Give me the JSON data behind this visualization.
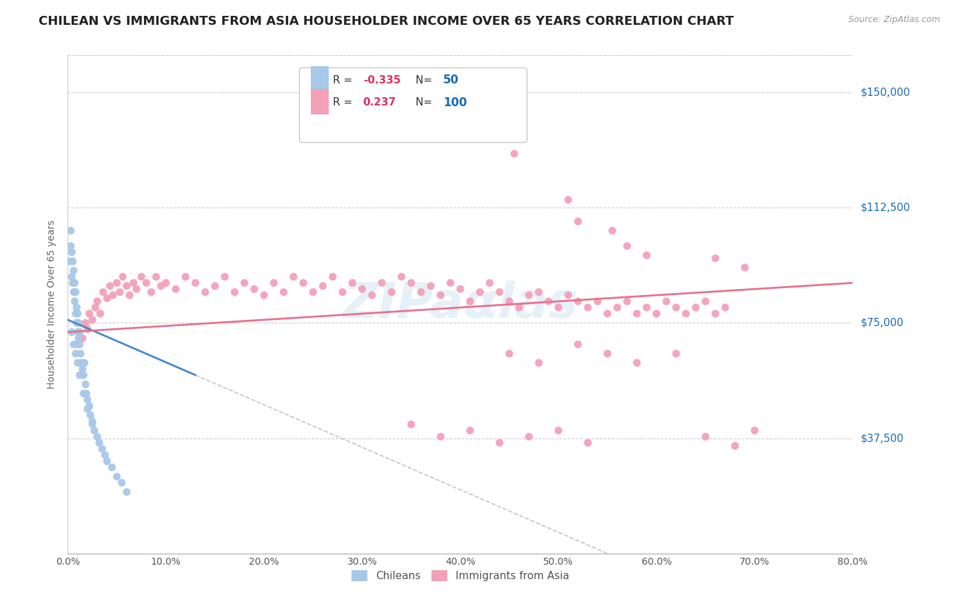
{
  "title": "CHILEAN VS IMMIGRANTS FROM ASIA HOUSEHOLDER INCOME OVER 65 YEARS CORRELATION CHART",
  "source": "Source: ZipAtlas.com",
  "ylabel": "Householder Income Over 65 years",
  "xlabel_ticks": [
    "0.0%",
    "10.0%",
    "20.0%",
    "30.0%",
    "40.0%",
    "50.0%",
    "60.0%",
    "70.0%",
    "80.0%"
  ],
  "ytick_labels": [
    "$37,500",
    "$75,000",
    "$112,500",
    "$150,000"
  ],
  "ytick_values": [
    37500,
    75000,
    112500,
    150000
  ],
  "xlim": [
    0.0,
    0.8
  ],
  "ylim": [
    0,
    162000
  ],
  "chilean_R": "-0.335",
  "chilean_N": "50",
  "asia_R": "0.237",
  "asia_N": "100",
  "chilean_color": "#a8c8e8",
  "asia_color": "#f4a0b8",
  "chilean_line_color": "#4488cc",
  "asia_line_color": "#e87090",
  "legend_text_color": "#1a6bb5",
  "background_color": "#ffffff",
  "title_fontsize": 13,
  "axis_label_fontsize": 10,
  "chilean_x": [
    0.002,
    0.003,
    0.003,
    0.004,
    0.004,
    0.005,
    0.005,
    0.006,
    0.006,
    0.007,
    0.007,
    0.008,
    0.008,
    0.009,
    0.009,
    0.01,
    0.01,
    0.011,
    0.011,
    0.012,
    0.012,
    0.013,
    0.014,
    0.015,
    0.016,
    0.017,
    0.018,
    0.019,
    0.02,
    0.022,
    0.023,
    0.025,
    0.027,
    0.03,
    0.032,
    0.035,
    0.038,
    0.04,
    0.045,
    0.05,
    0.055,
    0.06,
    0.004,
    0.006,
    0.008,
    0.01,
    0.012,
    0.016,
    0.02,
    0.025
  ],
  "chilean_y": [
    95000,
    100000,
    105000,
    90000,
    98000,
    88000,
    95000,
    85000,
    92000,
    82000,
    88000,
    78000,
    85000,
    75000,
    80000,
    72000,
    78000,
    70000,
    75000,
    68000,
    72000,
    65000,
    62000,
    60000,
    58000,
    62000,
    55000,
    52000,
    50000,
    48000,
    45000,
    42000,
    40000,
    38000,
    36000,
    34000,
    32000,
    30000,
    28000,
    25000,
    23000,
    20000,
    72000,
    68000,
    65000,
    62000,
    58000,
    52000,
    47000,
    43000
  ],
  "asia_x": [
    0.01,
    0.012,
    0.015,
    0.018,
    0.02,
    0.022,
    0.025,
    0.028,
    0.03,
    0.033,
    0.036,
    0.04,
    0.043,
    0.046,
    0.05,
    0.053,
    0.056,
    0.06,
    0.063,
    0.067,
    0.07,
    0.075,
    0.08,
    0.085,
    0.09,
    0.095,
    0.1,
    0.11,
    0.12,
    0.13,
    0.14,
    0.15,
    0.16,
    0.17,
    0.18,
    0.19,
    0.2,
    0.21,
    0.22,
    0.23,
    0.24,
    0.25,
    0.26,
    0.27,
    0.28,
    0.29,
    0.3,
    0.31,
    0.32,
    0.33,
    0.34,
    0.35,
    0.36,
    0.37,
    0.38,
    0.39,
    0.4,
    0.41,
    0.42,
    0.43,
    0.44,
    0.45,
    0.46,
    0.47,
    0.48,
    0.49,
    0.5,
    0.51,
    0.52,
    0.53,
    0.54,
    0.55,
    0.56,
    0.57,
    0.58,
    0.59,
    0.6,
    0.61,
    0.62,
    0.63,
    0.64,
    0.65,
    0.66,
    0.67,
    0.45,
    0.48,
    0.52,
    0.55,
    0.58,
    0.62,
    0.35,
    0.38,
    0.41,
    0.44,
    0.47,
    0.5,
    0.53,
    0.65,
    0.68,
    0.7
  ],
  "asia_y": [
    68000,
    72000,
    70000,
    75000,
    73000,
    78000,
    76000,
    80000,
    82000,
    78000,
    85000,
    83000,
    87000,
    84000,
    88000,
    85000,
    90000,
    87000,
    84000,
    88000,
    86000,
    90000,
    88000,
    85000,
    90000,
    87000,
    88000,
    86000,
    90000,
    88000,
    85000,
    87000,
    90000,
    85000,
    88000,
    86000,
    84000,
    88000,
    85000,
    90000,
    88000,
    85000,
    87000,
    90000,
    85000,
    88000,
    86000,
    84000,
    88000,
    85000,
    90000,
    88000,
    85000,
    87000,
    84000,
    88000,
    86000,
    82000,
    85000,
    88000,
    85000,
    82000,
    80000,
    84000,
    85000,
    82000,
    80000,
    84000,
    82000,
    80000,
    82000,
    78000,
    80000,
    82000,
    78000,
    80000,
    78000,
    82000,
    80000,
    78000,
    80000,
    82000,
    78000,
    80000,
    65000,
    62000,
    68000,
    65000,
    62000,
    65000,
    42000,
    38000,
    40000,
    36000,
    38000,
    40000,
    36000,
    38000,
    35000,
    40000
  ],
  "asia_outlier_x": [
    0.455,
    0.51,
    0.52,
    0.555,
    0.57,
    0.59,
    0.66,
    0.69
  ],
  "asia_outlier_y": [
    130000,
    115000,
    108000,
    105000,
    100000,
    97000,
    96000,
    93000
  ]
}
